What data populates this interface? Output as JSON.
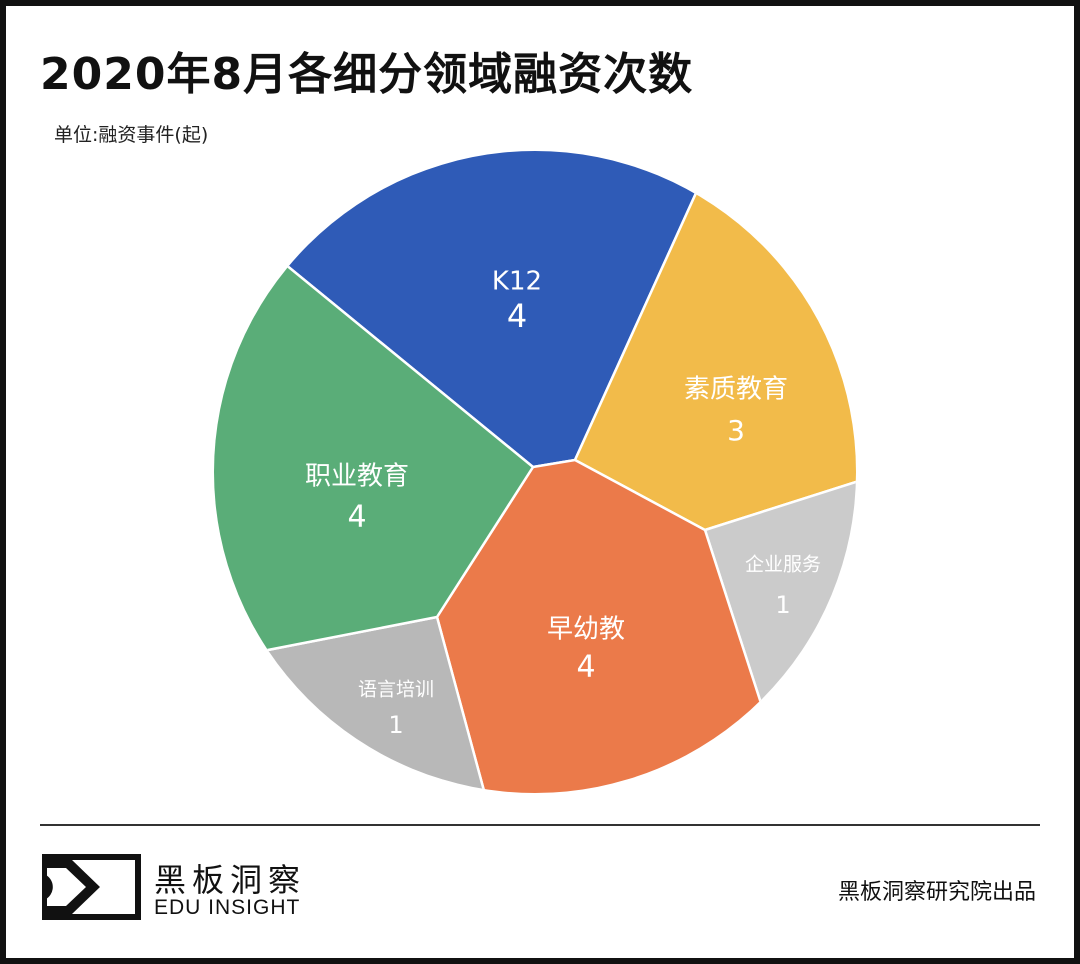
{
  "chart_data": {
    "type": "pie",
    "style": "voronoi-circle",
    "title": "2020年8月各细分领域融资次数",
    "unit_label": "单位:融资事件(起)",
    "slices": [
      {
        "label": "K12",
        "value": 4,
        "color": "#2f5bb7"
      },
      {
        "label": "素质教育",
        "value": 3,
        "color": "#f2bb4a"
      },
      {
        "label": "企业服务",
        "value": 1,
        "color": "#cbcbcb"
      },
      {
        "label": "早幼教",
        "value": 4,
        "color": "#eb7a4a"
      },
      {
        "label": "语言培训",
        "value": 1,
        "color": "#b8b8b8"
      },
      {
        "label": "职业教育",
        "value": 4,
        "color": "#5aad78"
      }
    ]
  },
  "footer": {
    "logo_cn": "黑板洞察",
    "logo_en": "EDU INSIGHT",
    "credit": "黑板洞察研究院出品"
  }
}
